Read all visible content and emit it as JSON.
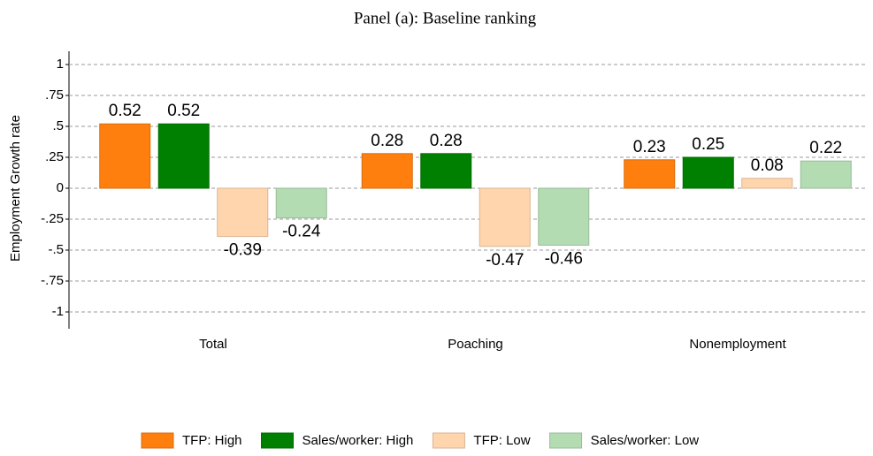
{
  "chart_data": {
    "type": "bar",
    "title": "Panel (a): Baseline ranking",
    "y_label": "Employment Growth rate",
    "categories": [
      "Total",
      "Poaching",
      "Nonemployment"
    ],
    "series": [
      {
        "name": "TFP: High",
        "color": "#ff7f0e",
        "values": [
          0.52,
          0.28,
          0.23
        ]
      },
      {
        "name": "Sales/worker: High",
        "color": "#008000",
        "values": [
          0.52,
          0.28,
          0.25
        ]
      },
      {
        "name": "TFP: Low",
        "color": "#ffd5ad",
        "values": [
          -0.39,
          -0.47,
          0.08
        ]
      },
      {
        "name": "Sales/worker: Low",
        "color": "#b3dcb3",
        "values": [
          -0.24,
          -0.46,
          0.22
        ]
      }
    ],
    "ylim": [
      -1,
      1
    ],
    "yticks": [
      1,
      {
        "value": 0.75,
        "label": ".75"
      },
      {
        "value": 0.5,
        "label": ".5"
      },
      {
        "value": 0.25,
        "label": ".25"
      },
      0,
      {
        "value": -0.25,
        "label": "-.25"
      },
      {
        "value": -0.5,
        "label": "-.5"
      },
      {
        "value": -0.75,
        "label": "-.75"
      },
      -1
    ],
    "grid": true
  }
}
